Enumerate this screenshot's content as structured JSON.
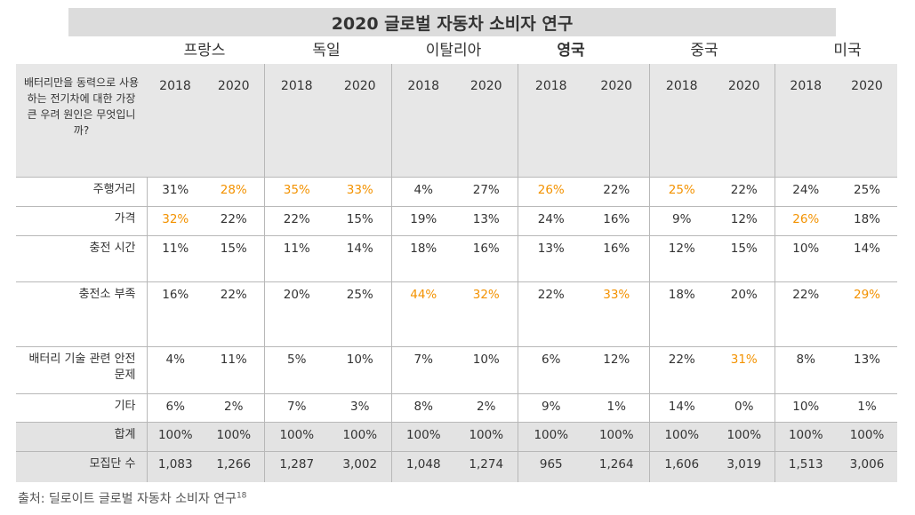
{
  "title": "2020 글로벌 자동차 소비자 연구",
  "question": "배터리만을 동력으로 사용하는 전기차에 대한 가장 큰 우려 원인은 무엇입니까?",
  "countries": [
    "프랑스",
    "독일",
    "이탈리아",
    "영국",
    "중국",
    "미국"
  ],
  "years": [
    "2018",
    "2020",
    "2018",
    "2020",
    "2018",
    "2020",
    "2018",
    "2020",
    "2018",
    "2020",
    "2018",
    "2020"
  ],
  "highlight_color": "#f39200",
  "rows": [
    {
      "label": "주행거리",
      "values": [
        "31%",
        "28%",
        "35%",
        "33%",
        "4%",
        "27%",
        "26%",
        "22%",
        "25%",
        "22%",
        "24%",
        "25%"
      ],
      "highlight": [
        1,
        2,
        3,
        6,
        8
      ],
      "height": 33
    },
    {
      "label": "가격",
      "values": [
        "32%",
        "22%",
        "22%",
        "15%",
        "19%",
        "13%",
        "24%",
        "16%",
        "9%",
        "12%",
        "26%",
        "18%"
      ],
      "highlight": [
        0,
        10
      ],
      "height": 33
    },
    {
      "label": "충전 시간",
      "values": [
        "11%",
        "15%",
        "11%",
        "14%",
        "18%",
        "16%",
        "13%",
        "16%",
        "12%",
        "15%",
        "10%",
        "14%"
      ],
      "highlight": [],
      "height": 52
    },
    {
      "label": "충전소 부족",
      "values": [
        "16%",
        "22%",
        "20%",
        "25%",
        "44%",
        "32%",
        "22%",
        "33%",
        "18%",
        "20%",
        "22%",
        "29%"
      ],
      "highlight": [
        4,
        5,
        7,
        11
      ],
      "height": 73
    },
    {
      "label": "배터리 기술 관련 안전 문제",
      "values": [
        "4%",
        "11%",
        "5%",
        "10%",
        "7%",
        "10%",
        "6%",
        "12%",
        "22%",
        "31%",
        "8%",
        "13%"
      ],
      "highlight": [
        9
      ],
      "height": 53
    },
    {
      "label": "기타",
      "values": [
        "6%",
        "2%",
        "7%",
        "3%",
        "8%",
        "2%",
        "9%",
        "1%",
        "14%",
        "0%",
        "10%",
        "1%"
      ],
      "highlight": [],
      "height": 32
    },
    {
      "label": "합계",
      "values": [
        "100%",
        "100%",
        "100%",
        "100%",
        "100%",
        "100%",
        "100%",
        "100%",
        "100%",
        "100%",
        "100%",
        "100%"
      ],
      "highlight": [],
      "height": 33,
      "total": true
    },
    {
      "label": "모집단 수",
      "values": [
        "1,083",
        "1,266",
        "1,287",
        "3,002",
        "1,048",
        "1,274",
        "965",
        "1,264",
        "1,606",
        "3,019",
        "1,513",
        "3,006"
      ],
      "highlight": [],
      "height": 34,
      "total": true
    }
  ],
  "source": "출처: 딜로이트 글로벌 자동차 소비자 연구",
  "source_ref": "18",
  "chart_data": {
    "type": "table",
    "title": "2020 글로벌 자동차 소비자 연구",
    "question": "배터리만을 동력으로 사용하는 전기차에 대한 가장 큰 우려 원인은 무엇입니까?",
    "groups": [
      "프랑스",
      "독일",
      "이탈리아",
      "영국",
      "중국",
      "미국"
    ],
    "categories": [
      "주행거리",
      "가격",
      "충전 시간",
      "충전소 부족",
      "배터리 기술 관련 안전 문제",
      "기타",
      "합계",
      "모집단 수"
    ]
  }
}
